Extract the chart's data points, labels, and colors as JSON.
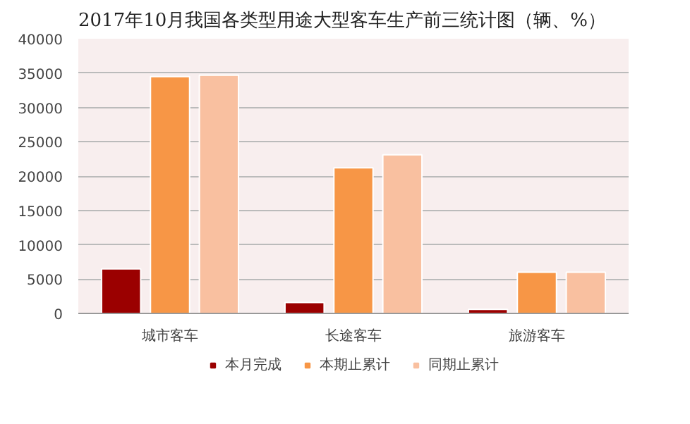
{
  "chart_data": {
    "type": "bar",
    "title": "2017年10月我国各类型用途大型客车生产前三统计图（辆、%）",
    "categories": [
      "城市客车",
      "长途客车",
      "旅游客车"
    ],
    "series": [
      {
        "name": "本月完成",
        "color": "#9b0000",
        "values": [
          6500,
          1600,
          600
        ]
      },
      {
        "name": "本期止累计",
        "color": "#f79646",
        "values": [
          34500,
          21200,
          6000
        ]
      },
      {
        "name": "同期止累计",
        "color": "#f9c0a0",
        "values": [
          34700,
          23100,
          6000
        ]
      }
    ],
    "ylim": [
      0,
      40000
    ],
    "yticks": [
      0,
      5000,
      10000,
      15000,
      20000,
      25000,
      30000,
      35000,
      40000
    ],
    "grid": "y",
    "legend": "bottom"
  }
}
